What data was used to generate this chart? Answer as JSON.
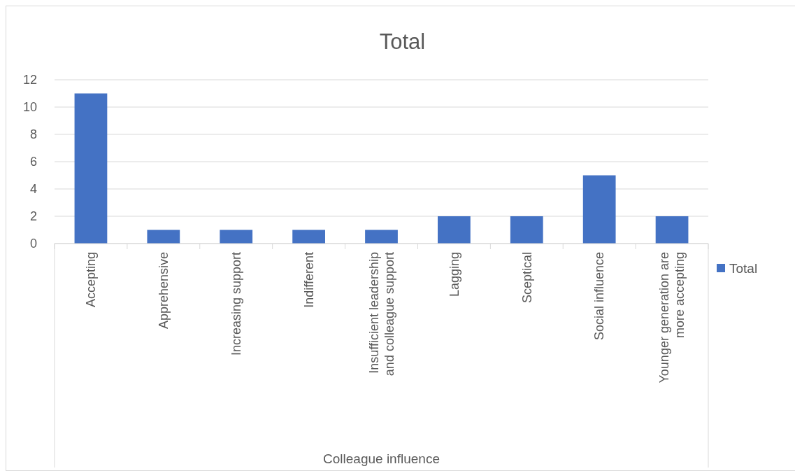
{
  "chart_data": {
    "type": "bar",
    "title": "Total",
    "annotations": [
      "Colleague influence"
    ],
    "categories": [
      "Accepting",
      "Apprehensive",
      "Increasing support",
      "Indifferent",
      "Insufficient leadership and colleague support",
      "Lagging",
      "Sceptical",
      "Social influence",
      "Younger generation are more accepting"
    ],
    "series": [
      {
        "name": "Total",
        "color": "#4472c4",
        "values": [
          11,
          1,
          1,
          1,
          1,
          2,
          2,
          5,
          2
        ]
      }
    ],
    "ylim": [
      0,
      12
    ],
    "yticks": [
      0,
      2,
      4,
      6,
      8,
      10,
      12
    ],
    "grid": "y",
    "legend": "right"
  }
}
